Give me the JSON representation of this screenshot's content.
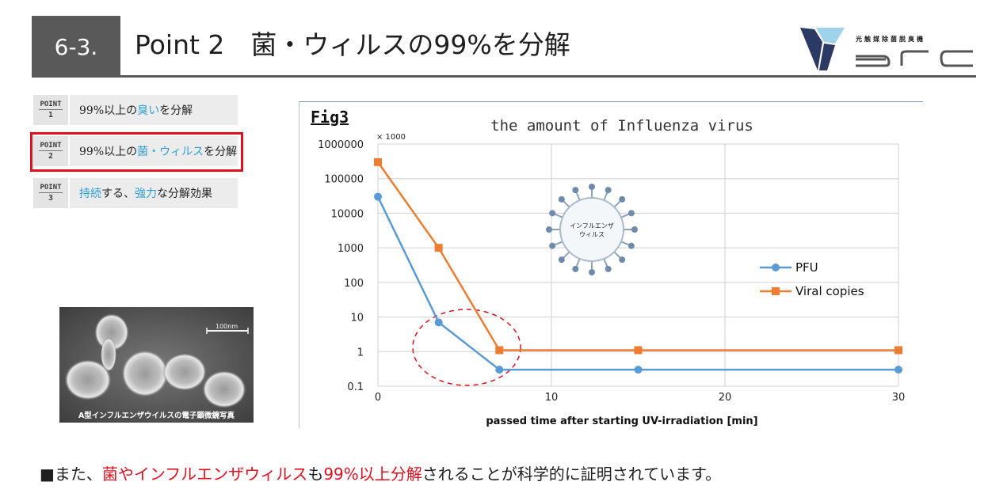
{
  "header": {
    "section_number": "6-3.",
    "title": "Point 2　菌・ウィルスの99%を分解"
  },
  "logo": {
    "tagline": "光触媒除菌脱臭機",
    "wordmark": "arc",
    "colors": {
      "navy": "#2a3a64",
      "light_blue": "#9fd3ec",
      "grey": "#555555"
    }
  },
  "points": [
    {
      "badge_word": "POINT",
      "badge_number": "1",
      "text_pre": "99%以上の",
      "text_hl": "臭い",
      "text_post": "を分解"
    },
    {
      "badge_word": "POINT",
      "badge_number": "2",
      "text_pre": "99%以上の",
      "text_hl": "菌・ウィルス",
      "text_post": "を分解"
    },
    {
      "badge_word": "POINT",
      "badge_number": "3",
      "text_pre": "",
      "text_hl": "持続",
      "text_mid": "する、",
      "text_hl2": "強力",
      "text_post": "な分解効果"
    }
  ],
  "highlighted_point": 2,
  "photo": {
    "caption": "A型インフルエンザウイルスの電子顕微鏡写真",
    "scale_bar": "100nm"
  },
  "virus_illustration": {
    "label_line1": "インフルエンザ",
    "label_line2": "ウィルス"
  },
  "chart_data": {
    "type": "line",
    "fig_label": "Fig3",
    "title": "the amount of Influenza virus",
    "unit_note": "× 1000",
    "xlabel": "passed time after starting UV-irradiation [min]",
    "ylabel": "",
    "y_scale": "log",
    "ylim": [
      0.1,
      1000000
    ],
    "xlim": [
      0,
      30
    ],
    "y_ticks": [
      "1000000",
      "100000",
      "10000",
      "1000",
      "100",
      "10",
      "1",
      "0.1"
    ],
    "x_ticks": [
      "0",
      "10",
      "20",
      "30"
    ],
    "grid": true,
    "legend_position": "right",
    "series": [
      {
        "name": "PFU",
        "color": "#5b9bd5",
        "marker": "circle",
        "x": [
          0,
          3.5,
          7,
          15,
          30
        ],
        "y": [
          30000,
          7,
          0.3,
          0.3,
          0.3
        ]
      },
      {
        "name": "Viral copies",
        "color": "#ed7d31",
        "marker": "square",
        "x": [
          0,
          3.5,
          7,
          15,
          30
        ],
        "y": [
          300000,
          1000,
          1.1,
          1.1,
          1.1
        ]
      }
    ]
  },
  "note": {
    "prefix": "■また、",
    "red1": "菌やインフルエンザウィルス",
    "mid": "も",
    "red2": "99%以上分解",
    "suffix": "されることが科学的に証明されています。"
  }
}
